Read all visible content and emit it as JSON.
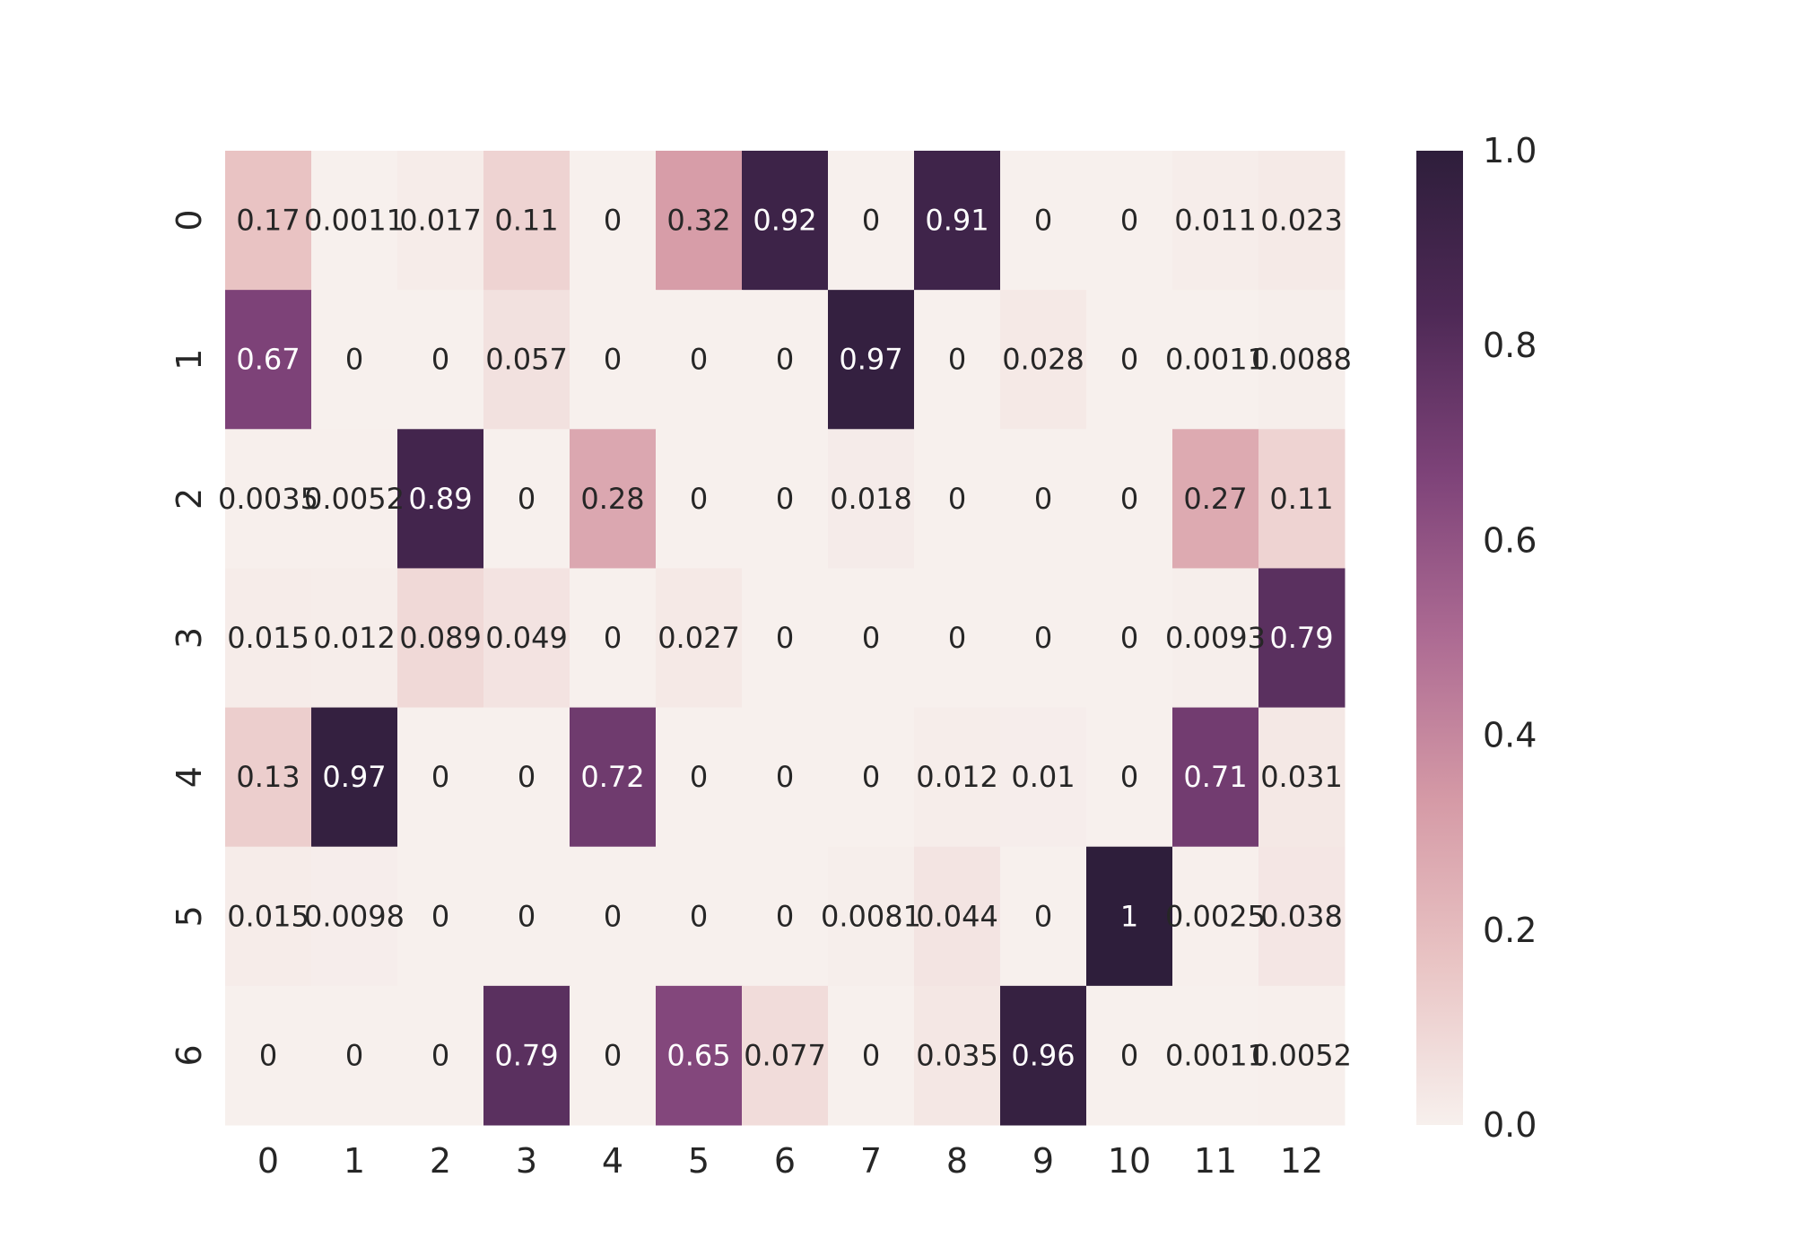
{
  "chart_data": {
    "type": "heatmap",
    "title": "",
    "xlabel": "",
    "ylabel": "",
    "x_ticks": [
      "0",
      "1",
      "2",
      "3",
      "4",
      "5",
      "6",
      "7",
      "8",
      "9",
      "10",
      "11",
      "12"
    ],
    "y_ticks": [
      "0",
      "1",
      "2",
      "3",
      "4",
      "5",
      "6"
    ],
    "values": [
      [
        0.17,
        0.0011,
        0.017,
        0.11,
        0,
        0.32,
        0.92,
        0,
        0.91,
        0,
        0,
        0.011,
        0.023
      ],
      [
        0.67,
        0,
        0,
        0.057,
        0,
        0,
        0,
        0.97,
        0,
        0.028,
        0,
        0.0011,
        0.0088
      ],
      [
        0.0035,
        0.0052,
        0.89,
        0,
        0.28,
        0,
        0,
        0.018,
        0,
        0,
        0,
        0.27,
        0.11
      ],
      [
        0.015,
        0.012,
        0.089,
        0.049,
        0,
        0.027,
        0,
        0,
        0,
        0,
        0,
        0.0093,
        0.79
      ],
      [
        0.13,
        0.97,
        0,
        0,
        0.72,
        0,
        0,
        0,
        0.012,
        0.01,
        0,
        0.71,
        0.031
      ],
      [
        0.015,
        0.0098,
        0,
        0,
        0,
        0,
        0,
        0.0081,
        0.044,
        0,
        1,
        0.0025,
        0.038
      ],
      [
        0,
        0,
        0,
        0.79,
        0,
        0.65,
        0.077,
        0,
        0.035,
        0.96,
        0,
        0.0011,
        0.0052
      ]
    ],
    "annotations": [
      [
        "0.17",
        "0.0011",
        "0.017",
        "0.11",
        "0",
        "0.32",
        "0.92",
        "0",
        "0.91",
        "0",
        "0",
        "0.011",
        "0.023"
      ],
      [
        "0.67",
        "0",
        "0",
        "0.057",
        "0",
        "0",
        "0",
        "0.97",
        "0",
        "0.028",
        "0",
        "0.0011",
        "0.0088"
      ],
      [
        "0.0035",
        "0.0052",
        "0.89",
        "0",
        "0.28",
        "0",
        "0",
        "0.018",
        "0",
        "0",
        "0",
        "0.27",
        "0.11"
      ],
      [
        "0.015",
        "0.012",
        "0.089",
        "0.049",
        "0",
        "0.027",
        "0",
        "0",
        "0",
        "0",
        "0",
        "0.0093",
        "0.79"
      ],
      [
        "0.13",
        "0.97",
        "0",
        "0",
        "0.72",
        "0",
        "0",
        "0",
        "0.012",
        "0.01",
        "0",
        "0.71",
        "0.031"
      ],
      [
        "0.015",
        "0.0098",
        "0",
        "0",
        "0",
        "0",
        "0",
        "0.0081",
        "0.044",
        "0",
        "1",
        "0.0025",
        "0.038"
      ],
      [
        "0",
        "0",
        "0",
        "0.79",
        "0",
        "0.65",
        "0.077",
        "0",
        "0.035",
        "0.96",
        "0",
        "0.0011",
        "0.0052"
      ]
    ],
    "colorbar": {
      "range": [
        0.0,
        1.0
      ],
      "ticks": [
        "0.0",
        "0.2",
        "0.4",
        "0.6",
        "0.8",
        "1.0"
      ],
      "tick_values": [
        0.0,
        0.2,
        0.4,
        0.6,
        0.8,
        1.0
      ]
    },
    "colormap": [
      "#f7f0ed",
      "#e9c4c4",
      "#d59aa6",
      "#ad6b93",
      "#7e4379",
      "#4e2956",
      "#2e1e3b"
    ],
    "annotation_colors": {
      "dark": "#262626",
      "light": "#ffffff"
    }
  }
}
